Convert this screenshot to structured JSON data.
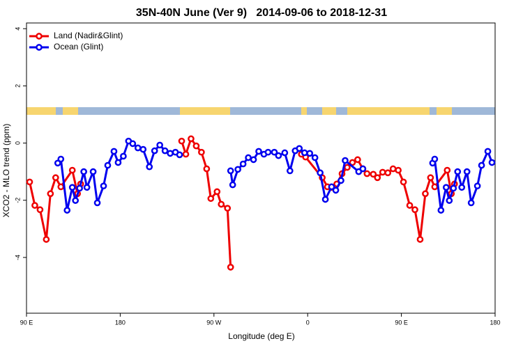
{
  "chart_data": {
    "type": "line",
    "title": "35N-40N June (Ver 9)   2014-09-06 to 2018-12-31",
    "x_label": "Longitude (deg E)",
    "y_label": "XCO2 - MLO trend (ppm)",
    "xlim": [
      90,
      540
    ],
    "ylim": [
      -5.95,
      4.2
    ],
    "xticks": [
      {
        "value": 90,
        "label": "90 E"
      },
      {
        "value": 180,
        "label": "180"
      },
      {
        "value": 270,
        "label": "90 W"
      },
      {
        "value": 360,
        "label": "0"
      },
      {
        "value": 450,
        "label": "90 E"
      },
      {
        "value": 540,
        "label": "180"
      }
    ],
    "yticks": [
      4,
      2,
      0,
      -2,
      -4
    ],
    "legend": "top-left",
    "series": [
      {
        "name": "Land (Nadir&Glint)",
        "color": "#ee0000",
        "x": [
          93,
          98,
          103,
          109,
          113,
          118,
          123,
          134,
          139,
          142,
          null,
          239,
          243,
          248,
          253,
          258,
          263,
          267,
          273,
          277,
          283,
          286,
          null,
          354,
          358,
          374,
          379,
          383,
          388,
          393,
          398,
          403,
          408,
          413,
          417,
          423,
          427,
          432,
          437,
          442,
          447,
          452,
          458,
          463,
          468,
          473,
          478,
          482,
          494,
          498,
          501
        ],
        "values": [
          -1.36,
          -2.18,
          -2.33,
          -3.37,
          -1.77,
          -1.21,
          -1.53,
          -0.95,
          -1.77,
          -1.43,
          null,
          0.07,
          -0.39,
          0.15,
          -0.1,
          -0.32,
          -0.9,
          -1.94,
          -1.7,
          -2.14,
          -2.28,
          -4.34,
          null,
          -0.39,
          -0.49,
          -1.21,
          -1.53,
          -1.55,
          -1.43,
          -1.07,
          -0.85,
          -0.68,
          -0.58,
          -0.9,
          -1.07,
          -1.09,
          -1.21,
          -1.02,
          -1.04,
          -0.9,
          -0.95,
          -1.36,
          -2.18,
          -2.33,
          -3.37,
          -1.77,
          -1.21,
          -1.53,
          -0.95,
          -1.77,
          -1.43
        ]
      },
      {
        "name": "Ocean (Glint)",
        "color": "#0000ee",
        "x": [
          120,
          123,
          129,
          134,
          137,
          141,
          145,
          148,
          154,
          158,
          164,
          168,
          174,
          178,
          183,
          188,
          192,
          197,
          202,
          208,
          213,
          218,
          223,
          228,
          233,
          237,
          null,
          286,
          288,
          293,
          298,
          303,
          308,
          313,
          318,
          322,
          328,
          332,
          338,
          343,
          348,
          352,
          357,
          362,
          367,
          372,
          377,
          383,
          387,
          392,
          396,
          409,
          413,
          null,
          480,
          482,
          488,
          493,
          496,
          500,
          504,
          508,
          513,
          517,
          523,
          527,
          533,
          537
        ],
        "values": [
          -0.7,
          -0.56,
          -2.35,
          -1.55,
          -2.01,
          -1.58,
          -1.0,
          -1.55,
          -1.0,
          -2.09,
          -1.5,
          -0.78,
          -0.29,
          -0.68,
          -0.46,
          0.07,
          -0.02,
          -0.17,
          -0.22,
          -0.83,
          -0.27,
          -0.07,
          -0.27,
          -0.36,
          -0.32,
          -0.41,
          null,
          -0.97,
          -1.46,
          -0.92,
          -0.73,
          -0.51,
          -0.58,
          -0.29,
          -0.39,
          -0.32,
          -0.32,
          -0.44,
          -0.34,
          -0.97,
          -0.27,
          -0.19,
          -0.34,
          -0.36,
          -0.51,
          -1.04,
          -1.97,
          -1.53,
          -1.65,
          -1.31,
          -0.61,
          -1.0,
          -0.9,
          null,
          -0.7,
          -0.56,
          -2.35,
          -1.55,
          -2.01,
          -1.58,
          -1.0,
          -1.55,
          -1.0,
          -2.09,
          -1.5,
          -0.78,
          -0.29,
          -0.68
        ]
      }
    ]
  }
}
